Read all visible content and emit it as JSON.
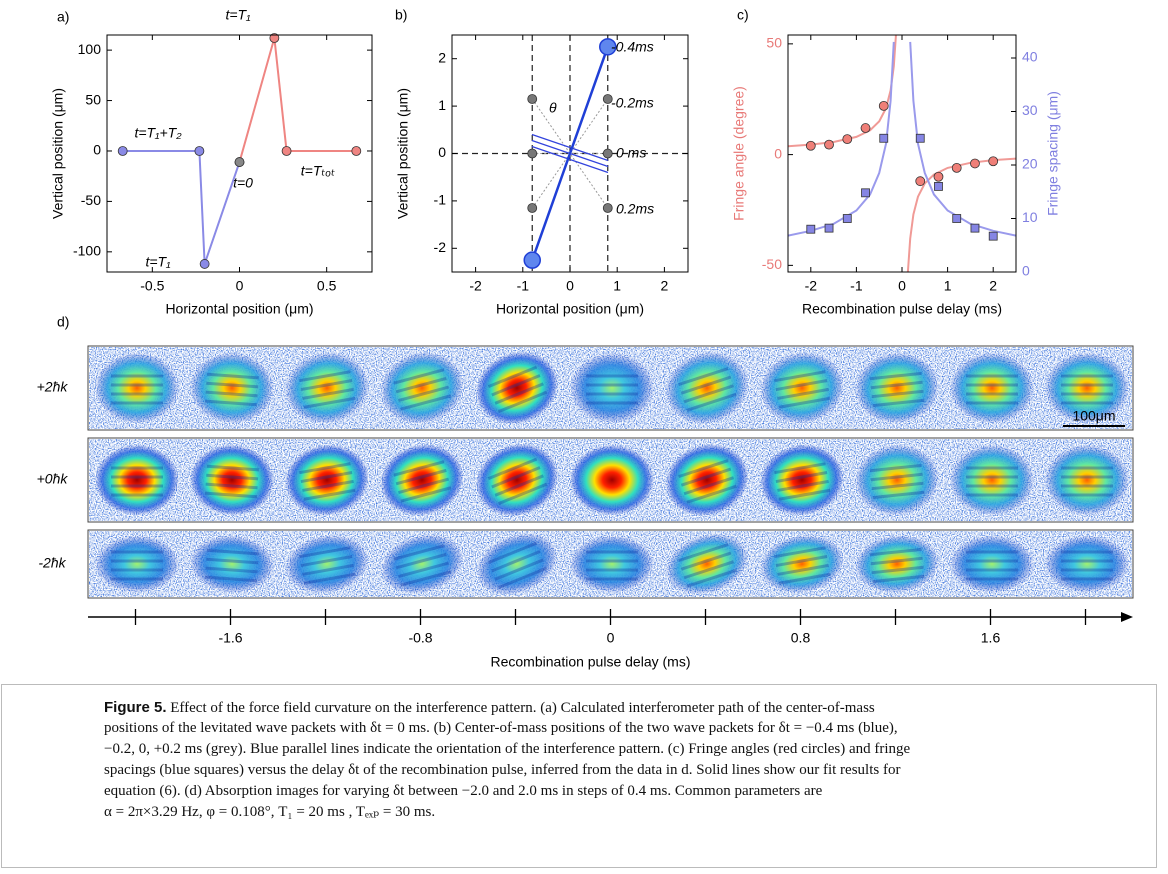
{
  "chart_data": [
    {
      "type": "line",
      "panel_label": "a)",
      "xlabel": "Horizontal position (μm)",
      "ylabel": "Vertical position (μm)",
      "xlim": [
        -0.76,
        0.76
      ],
      "ylim": [
        -120,
        115
      ],
      "xticks": [
        -0.5,
        0,
        0.5
      ],
      "yticks": [
        -100,
        -50,
        0,
        50,
        100
      ],
      "series": [
        {
          "color": "#8a8ae6",
          "marker": "circle",
          "line": true,
          "marker_colors": [
            "#8a8ae6",
            "#8a8ae6",
            "#8a8ae6",
            "#888888"
          ],
          "x": [
            -0.67,
            -0.23,
            -0.2,
            0
          ],
          "values": [
            0,
            0,
            -112,
            -11
          ]
        },
        {
          "color": "#ef8582",
          "marker": "circle",
          "line": true,
          "marker_colors": [
            "#888888",
            "#ef8582",
            "#ef8582",
            "#ef8582"
          ],
          "x": [
            0,
            0.2,
            0.27,
            0.67
          ],
          "values": [
            -11,
            112,
            0,
            0
          ]
        }
      ],
      "annotations": [
        "t=T₁",
        "t=T₁+T₂",
        "t=0",
        "t=T₁",
        "t=Tₜₒₜ"
      ]
    },
    {
      "type": "scatter",
      "panel_label": "b)",
      "xlabel": "Horizontal position (μm)",
      "ylabel": "Vertical position (μm)",
      "xlim": [
        -2.5,
        2.5
      ],
      "ylim": [
        -2.5,
        2.5
      ],
      "xticks": [
        -2,
        -1,
        0,
        1,
        2
      ],
      "yticks": [
        -2,
        -1,
        0,
        1,
        2
      ],
      "vlines": [
        -0.8,
        0,
        0.8
      ],
      "hlines": [
        0
      ],
      "series": [
        {
          "color": "#1f3fd6",
          "marker": "circle-large",
          "line": true,
          "x": [
            -0.8,
            0.8
          ],
          "values": [
            -2.25,
            2.25
          ]
        },
        {
          "color": "#777777",
          "marker": "circle",
          "line": false,
          "x": [
            -0.8,
            -0.8,
            -0.8,
            0.8,
            0.8,
            0.8
          ],
          "values": [
            -1.15,
            0,
            1.15,
            1.15,
            0,
            -1.15
          ]
        }
      ],
      "annotations": [
        "-0.4ms",
        "-0.2ms",
        "0 ms",
        "0.2ms",
        "θ"
      ]
    },
    {
      "type": "scatter",
      "panel_label": "c)",
      "xlabel": "Recombination pulse delay (ms)",
      "ylabel": "Fringe angle (degree)",
      "y2label": "Fringe spacing (μm)",
      "ycolor": "#e87a78",
      "y2color": "#7f7fe0",
      "xlim": [
        -2.5,
        2.5
      ],
      "ylim": [
        -53,
        54
      ],
      "y2lim": [
        0,
        44.3
      ],
      "xticks": [
        -2,
        -1,
        0,
        1,
        2
      ],
      "yticks": [
        -50,
        0,
        50
      ],
      "y2ticks": [
        0,
        10,
        20,
        30,
        40
      ],
      "series": [
        {
          "color": "#f09a96",
          "marker": "none",
          "line": true,
          "x": [
            -2.5,
            -2,
            -1.5,
            -1,
            -0.7,
            -0.5,
            -0.35,
            -0.25,
            -0.18,
            -0.13,
            null,
            0.13,
            0.18,
            0.25,
            0.35,
            0.5,
            0.7,
            1,
            1.5,
            2,
            2.5
          ],
          "values": [
            3.8,
            4.5,
            5.7,
            8,
            11,
            15,
            21,
            29,
            39.9,
            54.8,
            null,
            -52.8,
            -37.9,
            -27,
            -19,
            -13,
            -9,
            -6,
            -3.7,
            -2.5,
            -1.8
          ]
        },
        {
          "color": "#9a9aec",
          "marker": "none",
          "line": true,
          "axis": "y2",
          "x": [
            -2.5,
            -2,
            -1.5,
            -1,
            -0.7,
            -0.5,
            -0.35,
            -0.25,
            -0.18,
            null,
            0.18,
            0.25,
            0.35,
            0.5,
            0.7,
            1,
            1.5,
            2,
            2.5
          ],
          "values": [
            6.8,
            7.7,
            9,
            11.5,
            14.5,
            18.5,
            24,
            32,
            43,
            null,
            43,
            32,
            24,
            18.5,
            14.5,
            11.5,
            9,
            7.7,
            6.8
          ]
        },
        {
          "color": "#ef7f78",
          "marker": "circle",
          "line": false,
          "x": [
            -2,
            -1.6,
            -1.2,
            -0.8,
            -0.4,
            0.4,
            0.8,
            1.2,
            1.6,
            2
          ],
          "values": [
            4,
            4.5,
            7,
            12,
            22,
            -12,
            -10,
            -6,
            -4,
            -3
          ]
        },
        {
          "color": "#8585e4",
          "marker": "square",
          "line": false,
          "axis": "y2",
          "x": [
            -2,
            -1.6,
            -1.2,
            -0.8,
            -0.4,
            0.4,
            0.8,
            1.2,
            1.6,
            2
          ],
          "values": [
            8,
            8.2,
            10,
            14.8,
            25,
            25,
            16,
            10,
            8.2,
            6.7
          ]
        }
      ]
    },
    {
      "type": "image-axis",
      "panel_label": "d)",
      "rows": [
        "+2ħk",
        "+0ħk",
        "-2ħk"
      ],
      "scale_bar": "100μm",
      "xlabel": "Recombination pulse delay (ms)",
      "xlim": [
        -2.2,
        2.2
      ],
      "xticks": [
        -1.6,
        -0.8,
        0,
        0.8,
        1.6
      ],
      "minor_xticks": [
        -2,
        -1.2,
        -0.4,
        0.4,
        1.2,
        2
      ]
    }
  ],
  "caption": {
    "label": "Figure 5.",
    "lines": [
      " Effect of the force field curvature on the interference pattern. (a) Calculated interferometer path of the center-of-mass",
      "positions of the levitated wave packets with δt = 0 ms. (b) Center-of-mass positions of the two wave packets for δt = −0.4 ms (blue),",
      "−0.2, 0, +0.2 ms (grey). Blue parallel lines indicate the orientation of the interference pattern. (c) Fringe angles (red circles) and fringe",
      "spacings (blue squares) versus the delay δt of the recombination pulse, inferred from the data in d. Solid lines show our fit results for",
      "equation (6). (d) Absorption images for varying δt between −2.0 and 2.0 ms in steps of 0.4 ms. Common parameters are",
      "α = 2π×3.29 Hz, φ = 0.108°, T₁ = 20 ms , Tₑₓₚ = 30 ms."
    ]
  }
}
